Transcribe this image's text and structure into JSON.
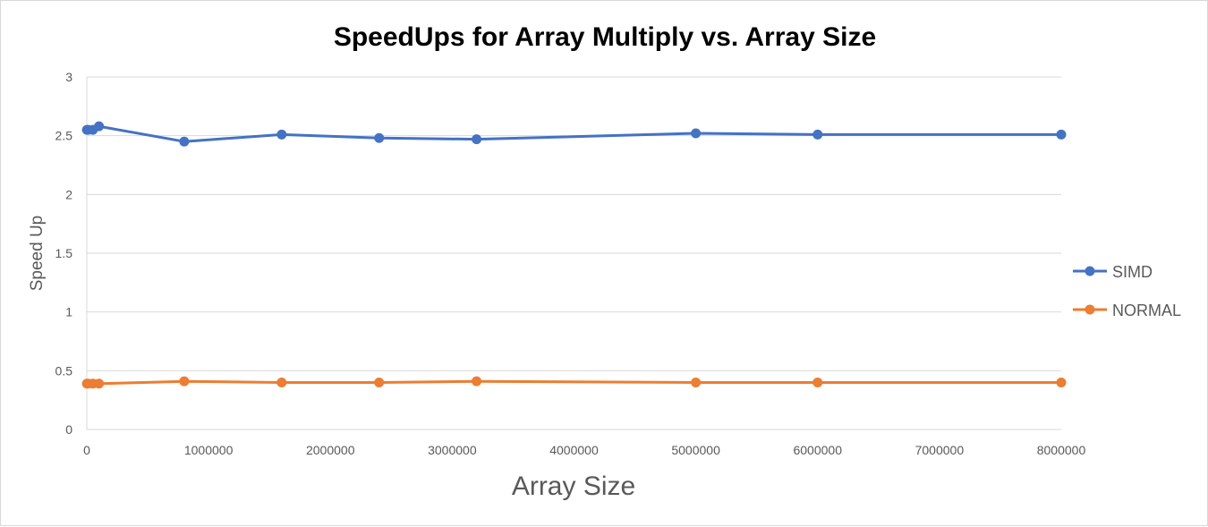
{
  "chart_data": {
    "type": "scatter",
    "title": "SpeedUps for Array Multiply vs. Array Size",
    "xlabel": "Array Size",
    "ylabel": "Speed Up",
    "xlim": [
      0,
      8000000
    ],
    "ylim": [
      0,
      3
    ],
    "x_ticks": [
      "0",
      "1000000",
      "2000000",
      "3000000",
      "4000000",
      "5000000",
      "6000000",
      "7000000",
      "8000000"
    ],
    "y_ticks": [
      "0",
      "0.5",
      "1",
      "1.5",
      "2",
      "2.5",
      "3"
    ],
    "grid": true,
    "legend_position": "right",
    "series": [
      {
        "name": "SIMD",
        "color": "#4472c4",
        "x": [
          1000,
          10000,
          50000,
          100000,
          800000,
          1600000,
          2400000,
          3200000,
          5000000,
          6000000,
          8000000
        ],
        "y": [
          2.55,
          2.55,
          2.55,
          2.58,
          2.45,
          2.51,
          2.48,
          2.47,
          2.52,
          2.51,
          2.51
        ]
      },
      {
        "name": "NORMAL",
        "color": "#ed7d31",
        "x": [
          1000,
          10000,
          50000,
          100000,
          800000,
          1600000,
          2400000,
          3200000,
          5000000,
          6000000,
          8000000
        ],
        "y": [
          0.39,
          0.39,
          0.39,
          0.39,
          0.41,
          0.4,
          0.4,
          0.41,
          0.4,
          0.4,
          0.4
        ]
      }
    ]
  }
}
